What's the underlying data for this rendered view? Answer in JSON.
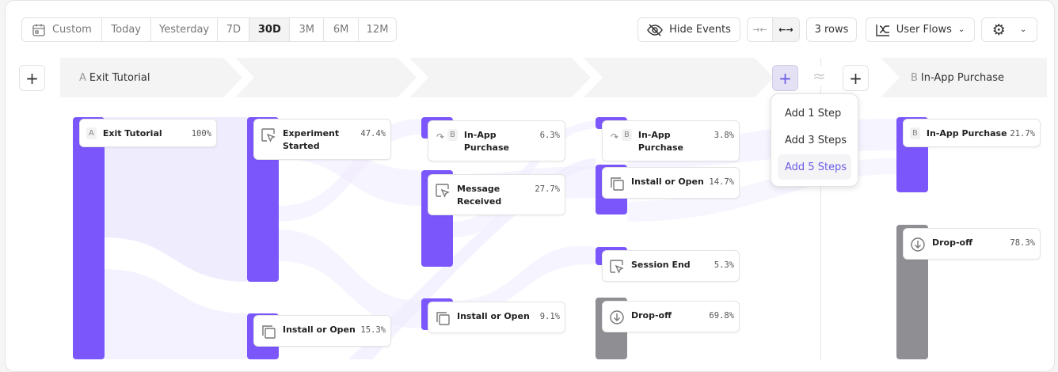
{
  "toolbar": {
    "date_ranges": [
      "Custom",
      "Today",
      "Yesterday",
      "7D",
      "30D",
      "3M",
      "6M",
      "12M"
    ],
    "active_range": "30D",
    "hide_events": "Hide Events",
    "rows": "3 rows",
    "view": "User Flows"
  },
  "steps": {
    "start": {
      "letter": "A",
      "label": "Exit Tutorial"
    },
    "end": {
      "letter": "B",
      "label": "In-App Purchase"
    },
    "approx_symbol": "≈"
  },
  "add_menu": {
    "items": [
      "Add 1 Step",
      "Add 3 Steps",
      "Add 5 Steps"
    ],
    "highlighted": "Add 5 Steps"
  },
  "columns": [
    [
      {
        "letter": "A",
        "name": "Exit Tutorial",
        "pct": "100%",
        "icon": "letter"
      }
    ],
    [
      {
        "name": "Experiment Started",
        "pct": "47.4%",
        "icon": "cursor-click-icon"
      },
      {
        "name": "Install or Open",
        "pct": "15.3%",
        "icon": "copy-icon"
      }
    ],
    [
      {
        "letter": "B",
        "name": "In-App Purchase",
        "pct": "6.3%",
        "icon": "redirect-icon"
      },
      {
        "name": "Message Received",
        "pct": "27.7%",
        "icon": "cursor-click-icon"
      },
      {
        "name": "Install or Open",
        "pct": "9.1%",
        "icon": "copy-icon"
      }
    ],
    [
      {
        "letter": "B",
        "name": "In-App Purchase",
        "pct": "3.8%",
        "icon": "redirect-icon"
      },
      {
        "name": "Install or Open",
        "pct": "14.7%",
        "icon": "copy-icon"
      },
      {
        "name": "Session End",
        "pct": "5.3%",
        "icon": "cursor-click-icon"
      },
      {
        "name": "Drop-off",
        "pct": "69.8%",
        "icon": "drop-off-icon"
      }
    ],
    [
      {
        "letter": "B",
        "name": "In-App Purchase",
        "pct": "21.7%",
        "icon": "letter"
      },
      {
        "name": "Drop-off",
        "pct": "78.3%",
        "icon": "drop-off-icon"
      }
    ]
  ],
  "colors": {
    "accent": "#7b57fb",
    "dropoff": "#8e8e93",
    "flow": "#ece8fe",
    "menu_highlight": "#6b5ce7"
  }
}
